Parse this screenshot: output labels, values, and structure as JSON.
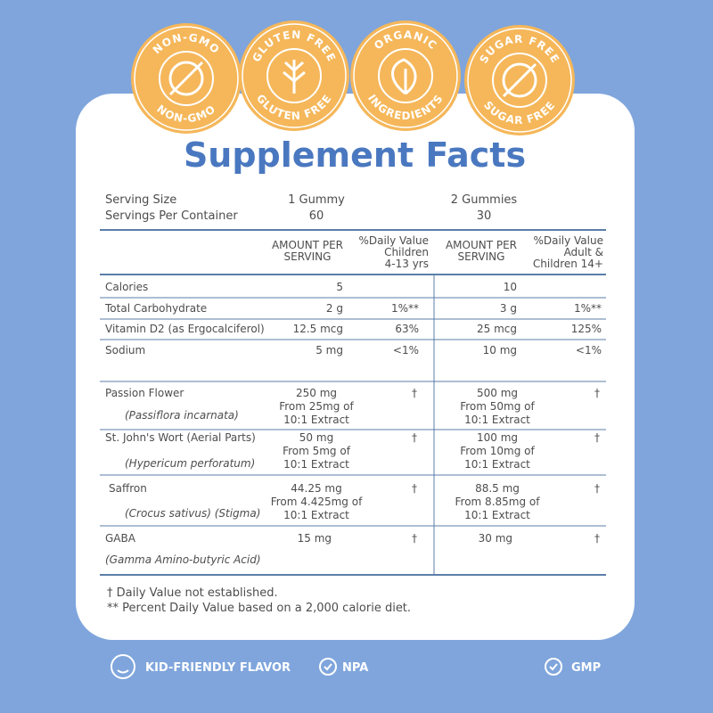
{
  "badges": [
    {
      "top": "NON-GMO",
      "bottom": "NON-GMO"
    },
    {
      "top": "GLUTEN FREE",
      "bottom": "GLUTEN FREE"
    },
    {
      "top": "ORGANIC",
      "bottom": "INGREDIENTS"
    },
    {
      "top": "SUGAR FREE",
      "bottom": "SUGAR FREE"
    }
  ],
  "title": "Supplement Facts",
  "serving": [
    [
      "Serving Size",
      "1 Gummy",
      "2 Gummies"
    ],
    [
      "Servings Per Container",
      "60",
      "30"
    ]
  ],
  "headers": [
    [
      "AMOUNT PER",
      "SERVING"
    ],
    [
      "%Daily Value",
      "Children",
      "4-13 yrs"
    ],
    [
      "AMOUNT PER",
      "SERVING"
    ],
    [
      "%Daily Value",
      "Adult &",
      "Children 14+"
    ]
  ],
  "rows": [
    {
      "name": "Calories",
      "amount_1": "5",
      "amount_2": "10"
    },
    {
      "name": "Total Carbohydrate",
      "amount_1": "2 g",
      "dv_1": "1%**",
      "amount_2": "3 g",
      "dv_2": "1%**"
    },
    {
      "name": "Vitamin D2 (as Ergocalciferol)",
      "amount_1": "12.5 mcg",
      "dv_1": "63%",
      "amount_2": "25 mcg",
      "dv_2": "125%"
    },
    {
      "name": "Sodium",
      "amount_1": "5 mg",
      "dv_1": "<1%",
      "amount_2": "10 mg",
      "dv_2": "<1%"
    }
  ],
  "herbal_rows": [
    {
      "name": "Passion Flower",
      "latin": "(Passiflora incarnata)",
      "amount_1": [
        "250 mg",
        "From 25mg of",
        "10:1 Extract"
      ],
      "dv_1": "†",
      "amount_2": [
        "500 mg",
        "From 50mg of",
        "10:1 Extract"
      ],
      "dv_2": "†"
    },
    {
      "name": "St. John's Wort (Aerial Parts)",
      "latin": "(Hypericum perforatum)",
      "amount_1": [
        "50 mg",
        "From 5mg of",
        "10:1 Extract"
      ],
      "dv_1": "†",
      "amount_2": [
        "100 mg",
        "From 10mg of",
        "10:1 Extract"
      ],
      "dv_2": "†"
    },
    {
      "name": "Saffron",
      "latin": "(Crocus sativus)  (Stigma)",
      "amount_1": [
        "44.25 mg",
        "From 4.425mg of",
        "10:1 Extract"
      ],
      "dv_1": "†",
      "amount_2": [
        "88.5 mg",
        "From 8.85mg of",
        "10:1 Extract"
      ],
      "dv_2": "†"
    },
    {
      "name": "GABA",
      "latin": "(Gamma Amino-butyric Acid)",
      "amount_1": [
        "15 mg"
      ],
      "dv_1": "†",
      "amount_2": [
        "30 mg"
      ],
      "dv_2": "†"
    }
  ],
  "footnotes": [
    "† Daily Value  not established.",
    "** Percent Daily Value based on a 2,000 calorie diet."
  ],
  "features": [
    "KID-FRIENDLY FLAVOR",
    "NPA",
    "GMP"
  ]
}
